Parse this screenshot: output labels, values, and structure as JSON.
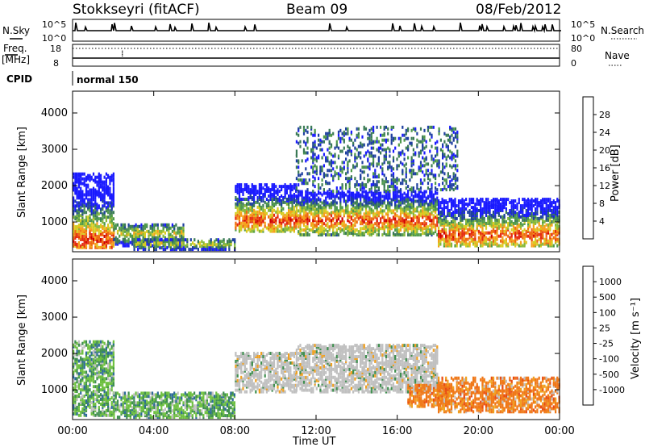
{
  "header": {
    "station": "Stokkseyri (fitACF)",
    "beam": "Beam 09",
    "date": "08/Feb/2012"
  },
  "strips": {
    "nsky_label": "N.Sky",
    "nsearch_label": "N.Search",
    "nsky_ticks": [
      "10^5",
      "10^0"
    ],
    "nsearch_ticks": [
      "10^5",
      "10^0"
    ],
    "freq_label_1": "Freq.",
    "freq_label_2": "[MHz]",
    "freq_ticks": [
      "18",
      "8"
    ],
    "nave_label": "Nave",
    "nave_ticks": [
      "80",
      "0"
    ],
    "cpid_label": "CPID",
    "cpid_value": "normal 150"
  },
  "colors": {
    "power": [
      "#1a1aff",
      "#1e3fa0",
      "#3a7a55",
      "#4f9a4a",
      "#86b83a",
      "#d8cc22",
      "#f5a11a",
      "#ee6a10",
      "#e52b10",
      "#d00000"
    ],
    "velocity": [
      "#2050b0",
      "#2d6a9a",
      "#3f8f4f",
      "#6ec040",
      "#c0c0c0",
      "#f0a020",
      "#f07818",
      "#e84c14",
      "#d01010"
    ]
  },
  "chart_data": [
    {
      "type": "heatmap",
      "ylabel": "Slant Range [km]",
      "xlabel": "Time UT",
      "x_ticks": [
        "00:00",
        "04:00",
        "08:00",
        "12:00",
        "16:00",
        "20:00",
        "00:00"
      ],
      "y_ticks": [
        "1000",
        "2000",
        "3000",
        "4000"
      ],
      "ylim": [
        180,
        4600
      ],
      "xlim_hours": [
        0,
        24
      ],
      "colorbar": {
        "label": "Power [dB]",
        "ticks": [
          "4",
          "8",
          "12",
          "16",
          "20",
          "24",
          "28"
        ],
        "range": [
          0,
          30
        ]
      },
      "regions": [
        {
          "t0": 0.0,
          "t1": 2.0,
          "r0": 250,
          "r1": 2300,
          "core": 450,
          "level": "high"
        },
        {
          "t0": 2.0,
          "t1": 5.5,
          "r0": 300,
          "r1": 900,
          "core": 650,
          "level": "mid"
        },
        {
          "t0": 3.0,
          "t1": 8.0,
          "r0": 200,
          "r1": 500,
          "core": 350,
          "level": "mid"
        },
        {
          "t0": 8.0,
          "t1": 11.0,
          "r0": 700,
          "r1": 2000,
          "core": 1000,
          "level": "high"
        },
        {
          "t0": 11.0,
          "t1": 18.0,
          "r0": 600,
          "r1": 1800,
          "core": 1000,
          "level": "high"
        },
        {
          "t0": 11.0,
          "t1": 19.0,
          "r0": 1800,
          "r1": 3600,
          "core": 2600,
          "level": "low"
        },
        {
          "t0": 18.0,
          "t1": 24.0,
          "r0": 300,
          "r1": 1600,
          "core": 600,
          "level": "high"
        }
      ]
    },
    {
      "type": "heatmap",
      "ylabel": "Slant Range [km]",
      "xlabel": "Time UT",
      "x_ticks": [
        "00:00",
        "04:00",
        "08:00",
        "12:00",
        "16:00",
        "20:00",
        "00:00"
      ],
      "y_ticks": [
        "1000",
        "2000",
        "3000",
        "4000"
      ],
      "ylim": [
        180,
        4600
      ],
      "xlim_hours": [
        0,
        24
      ],
      "colorbar": {
        "label": "Velocity [m s⁻¹]",
        "ticks": [
          "1000",
          "500",
          "100",
          "25",
          "-25",
          "-100",
          "-500",
          "-1000"
        ],
        "range": [
          -1000,
          1000
        ]
      },
      "regions": [
        {
          "t0": 0.0,
          "t1": 2.0,
          "r0": 250,
          "r1": 2300,
          "vel": "pos"
        },
        {
          "t0": 2.0,
          "t1": 8.0,
          "r0": 200,
          "r1": 900,
          "vel": "pos"
        },
        {
          "t0": 8.0,
          "t1": 11.0,
          "r0": 900,
          "r1": 2000,
          "vel": "zero"
        },
        {
          "t0": 11.0,
          "t1": 18.0,
          "r0": 900,
          "r1": 2200,
          "vel": "zero"
        },
        {
          "t0": 16.5,
          "t1": 18.5,
          "r0": 500,
          "r1": 1100,
          "vel": "neg"
        },
        {
          "t0": 18.0,
          "t1": 24.0,
          "r0": 350,
          "r1": 1300,
          "vel": "neg"
        }
      ]
    }
  ]
}
